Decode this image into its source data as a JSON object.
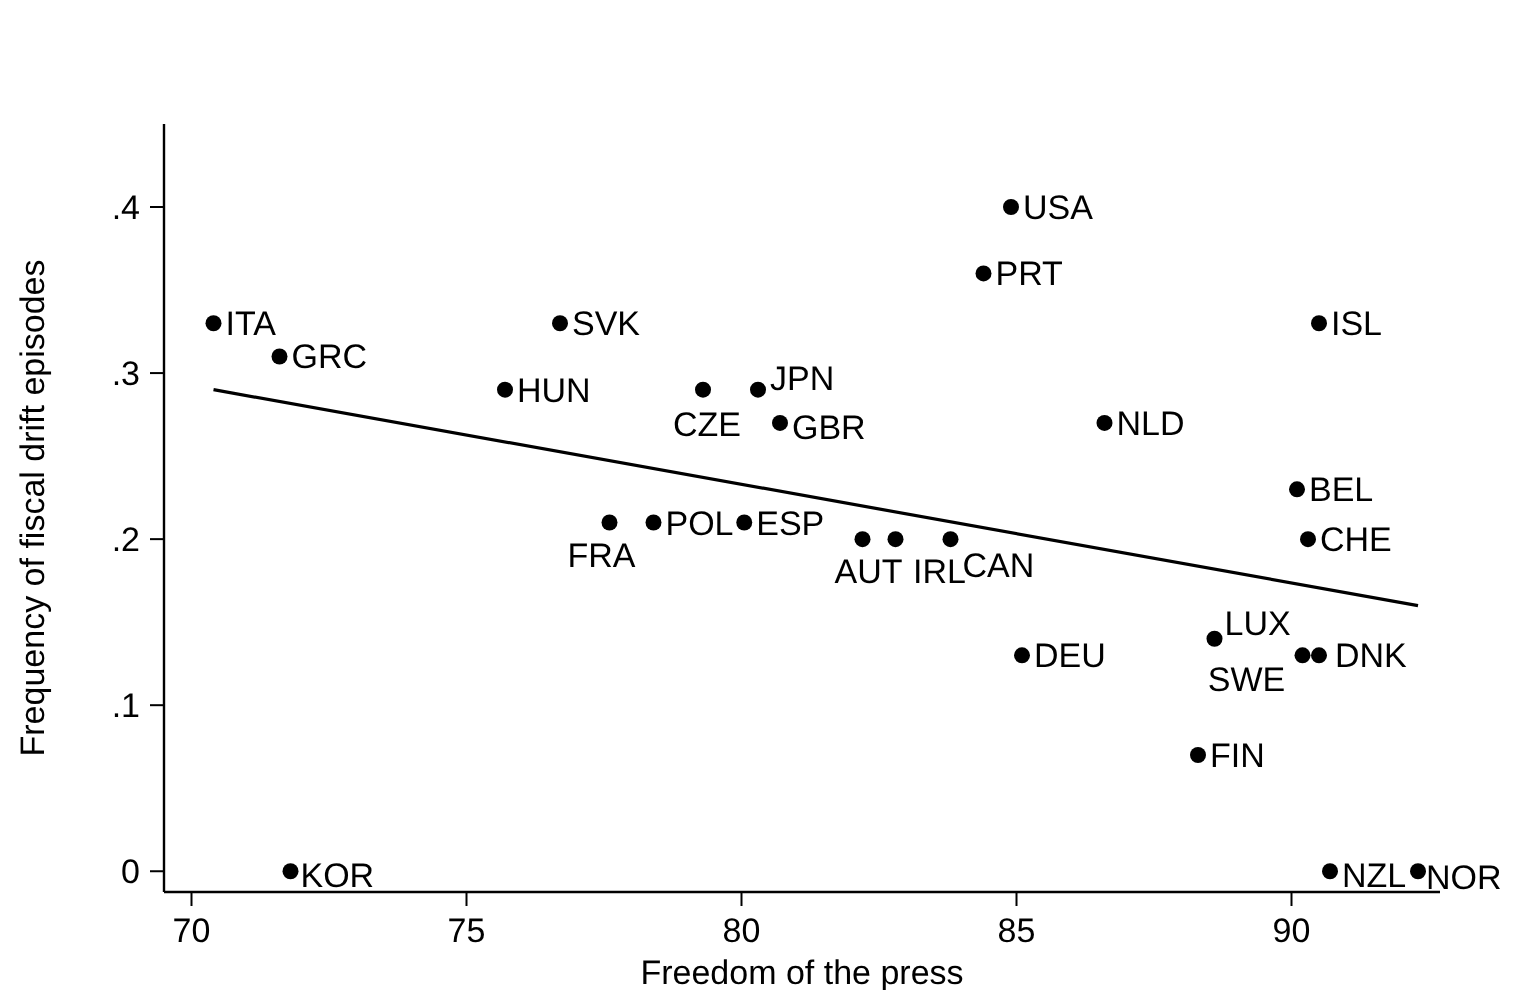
{
  "chart_data": {
    "type": "scatter",
    "xlabel": "Freedom of the press",
    "ylabel": "Frequency of fiscal drift episodes",
    "xlim": [
      69.5,
      92.7
    ],
    "ylim": [
      -0.0125,
      0.45
    ],
    "xticks": [
      70,
      75,
      80,
      85,
      90
    ],
    "yticks": [
      0,
      {
        "value": 0.1,
        "label": ".1"
      },
      {
        "value": 0.2,
        "label": ".2"
      },
      {
        "value": 0.3,
        "label": ".3"
      },
      {
        "value": 0.4,
        "label": ".4"
      }
    ],
    "grid": false,
    "marker": "circle",
    "series": [
      {
        "color": "#000000",
        "x": [
          70.4,
          71.6,
          71.8,
          75.7,
          76.7,
          77.6,
          78.4,
          79.3,
          80.3,
          80.7,
          80.05,
          82.2,
          82.8,
          83.8,
          84.9,
          84.4,
          86.6,
          85.1,
          88.3,
          88.6,
          90.2,
          90.5,
          90.1,
          90.5,
          90.3,
          90.7,
          92.3
        ],
        "values": [
          0.33,
          0.31,
          0,
          0.29,
          0.33,
          0.21,
          0.21,
          0.29,
          0.29,
          0.27,
          0.21,
          0.2,
          0.2,
          0.2,
          0.4,
          0.36,
          0.27,
          0.13,
          0.07,
          0.14,
          0.13,
          0.13,
          0.23,
          0.33,
          0.2,
          0,
          0
        ]
      },
      {
        "type": "line",
        "color": "#000000",
        "marker": "none",
        "x": [
          70.4,
          92.3
        ],
        "values": [
          0.29,
          0.16
        ]
      }
    ],
    "annotations": [
      {
        "text": "ITA",
        "x": 70.4,
        "y": 0.33
      },
      {
        "text": "GRC",
        "x": 71.6,
        "y": 0.31
      },
      {
        "text": "KOR",
        "x": 71.8,
        "y": 0
      },
      {
        "text": "HUN",
        "x": 75.7,
        "y": 0.29
      },
      {
        "text": "SVK",
        "x": 76.7,
        "y": 0.33
      },
      {
        "text": "FRA",
        "x": 77.6,
        "y": 0.21
      },
      {
        "text": "POL",
        "x": 78.4,
        "y": 0.21
      },
      {
        "text": "CZE",
        "x": 79.3,
        "y": 0.29
      },
      {
        "text": "JPN",
        "x": 80.3,
        "y": 0.29
      },
      {
        "text": "GBR",
        "x": 80.7,
        "y": 0.27
      },
      {
        "text": "ESP",
        "x": 80.05,
        "y": 0.21
      },
      {
        "text": "AUT",
        "x": 82.2,
        "y": 0.2
      },
      {
        "text": "IRL",
        "x": 82.8,
        "y": 0.2
      },
      {
        "text": "CAN",
        "x": 83.8,
        "y": 0.2
      },
      {
        "text": "USA",
        "x": 84.9,
        "y": 0.4
      },
      {
        "text": "PRT",
        "x": 84.4,
        "y": 0.36
      },
      {
        "text": "NLD",
        "x": 86.6,
        "y": 0.27
      },
      {
        "text": "DEU",
        "x": 85.1,
        "y": 0.13
      },
      {
        "text": "FIN",
        "x": 88.3,
        "y": 0.07
      },
      {
        "text": "LUX",
        "x": 88.6,
        "y": 0.14
      },
      {
        "text": "SWE",
        "x": 90.2,
        "y": 0.13
      },
      {
        "text": "DNK",
        "x": 90.5,
        "y": 0.13
      },
      {
        "text": "BEL",
        "x": 90.1,
        "y": 0.23
      },
      {
        "text": "ISL",
        "x": 90.5,
        "y": 0.33
      },
      {
        "text": "CHE",
        "x": 90.3,
        "y": 0.2
      },
      {
        "text": "NZL",
        "x": 90.7,
        "y": 0
      },
      {
        "text": "NOR",
        "x": 92.3,
        "y": 0
      }
    ]
  }
}
